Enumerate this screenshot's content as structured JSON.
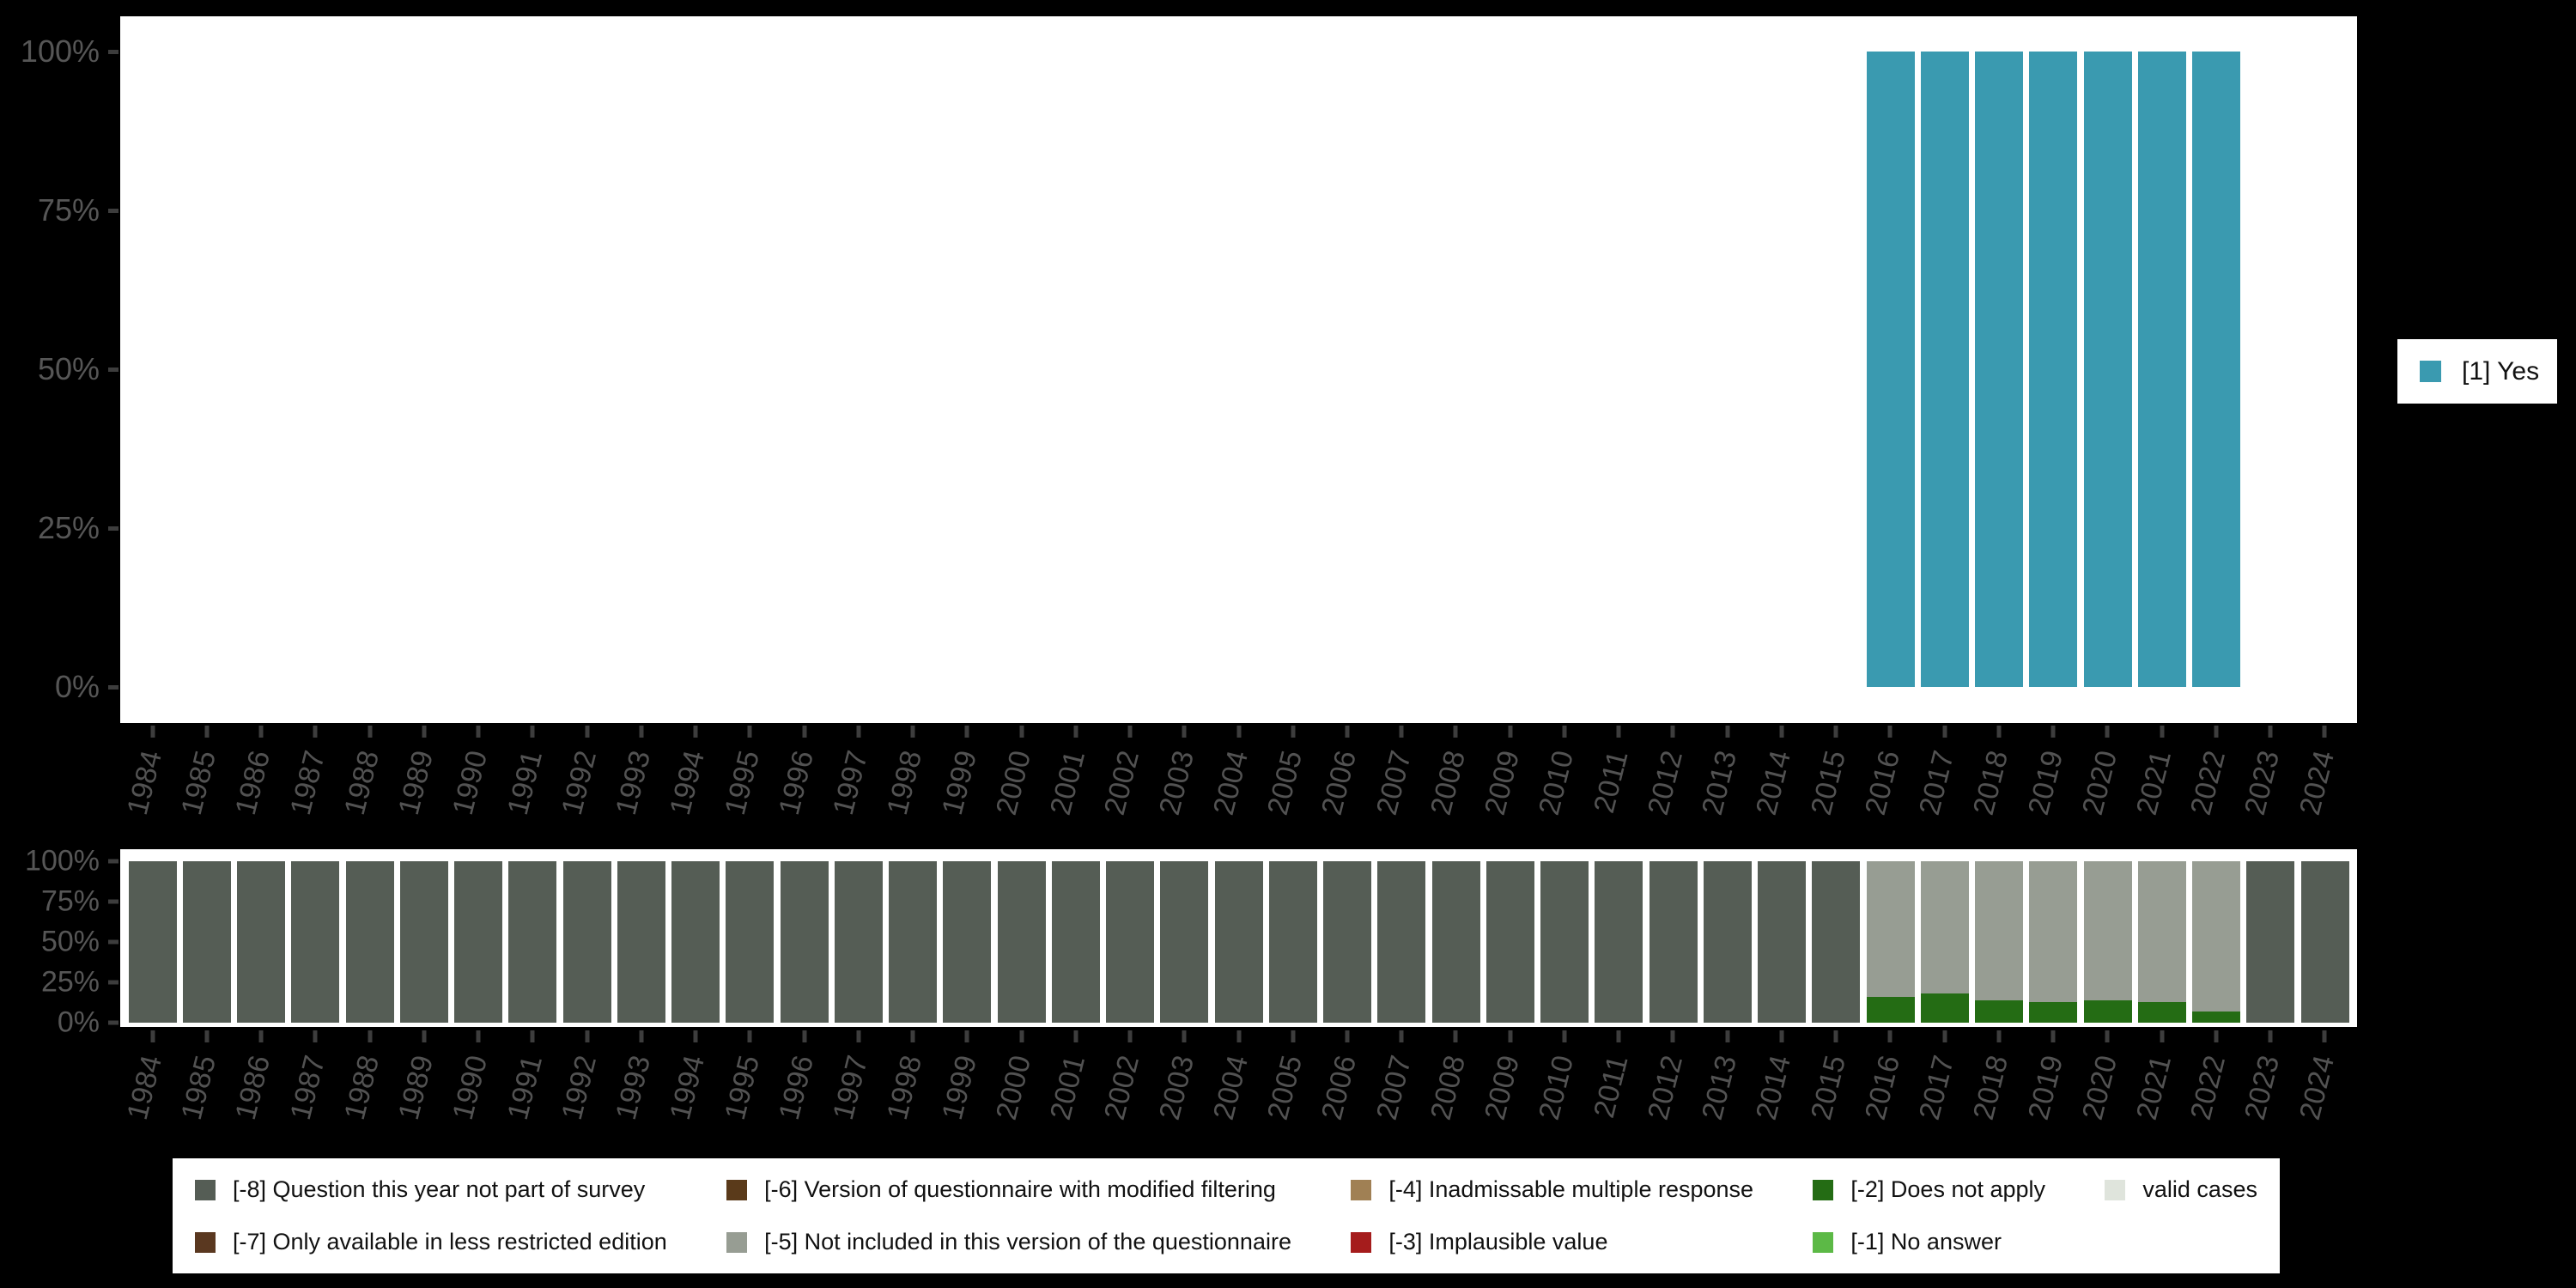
{
  "colors": {
    "background": "#000000",
    "panel": "#FFFFFF",
    "axis_label": "#565656",
    "tick_mark": "#3D3D3D",
    "legend_text": "#111111"
  },
  "chart_data": [
    {
      "type": "bar",
      "title": "",
      "xlabel": "",
      "ylabel": "",
      "categories": [
        "1984",
        "1985",
        "1986",
        "1987",
        "1988",
        "1989",
        "1990",
        "1991",
        "1992",
        "1993",
        "1994",
        "1995",
        "1996",
        "1997",
        "1998",
        "1999",
        "2000",
        "2001",
        "2002",
        "2003",
        "2004",
        "2005",
        "2006",
        "2007",
        "2008",
        "2009",
        "2010",
        "2011",
        "2012",
        "2013",
        "2014",
        "2015",
        "2016",
        "2017",
        "2018",
        "2019",
        "2020",
        "2021",
        "2022",
        "2023",
        "2024"
      ],
      "y_ticks": [
        "0%",
        "25%",
        "50%",
        "75%",
        "100%"
      ],
      "ylim": [
        0,
        100
      ],
      "unit": "percent",
      "grid": false,
      "legend_position": "right",
      "series": [
        {
          "key": "yes",
          "name": "[1] Yes",
          "color": "#3A9AB0",
          "values": [
            0,
            0,
            0,
            0,
            0,
            0,
            0,
            0,
            0,
            0,
            0,
            0,
            0,
            0,
            0,
            0,
            0,
            0,
            0,
            0,
            0,
            0,
            0,
            0,
            0,
            0,
            0,
            0,
            0,
            0,
            0,
            0,
            100,
            100,
            100,
            100,
            100,
            100,
            100,
            0,
            0
          ]
        }
      ]
    },
    {
      "type": "stacked-bar",
      "title": "",
      "xlabel": "",
      "ylabel": "",
      "categories": [
        "1984",
        "1985",
        "1986",
        "1987",
        "1988",
        "1989",
        "1990",
        "1991",
        "1992",
        "1993",
        "1994",
        "1995",
        "1996",
        "1997",
        "1998",
        "1999",
        "2000",
        "2001",
        "2002",
        "2003",
        "2004",
        "2005",
        "2006",
        "2007",
        "2008",
        "2009",
        "2010",
        "2011",
        "2012",
        "2013",
        "2014",
        "2015",
        "2016",
        "2017",
        "2018",
        "2019",
        "2020",
        "2021",
        "2022",
        "2023",
        "2024"
      ],
      "y_ticks": [
        "0%",
        "25%",
        "50%",
        "75%",
        "100%"
      ],
      "ylim": [
        0,
        100
      ],
      "unit": "percent",
      "grid": false,
      "legend_position": "bottom",
      "stack_order": "bottom-to-top",
      "series": [
        {
          "key": "does-not-apply",
          "name": "[-2] Does not apply",
          "color": "#246C14",
          "values": [
            0,
            0,
            0,
            0,
            0,
            0,
            0,
            0,
            0,
            0,
            0,
            0,
            0,
            0,
            0,
            0,
            0,
            0,
            0,
            0,
            0,
            0,
            0,
            0,
            0,
            0,
            0,
            0,
            0,
            0,
            0,
            0,
            16,
            18,
            14,
            13,
            14,
            13,
            7,
            0,
            0
          ]
        },
        {
          "key": "not-included-in-version",
          "name": "[-5] Not included in this version of the questionnaire",
          "color": "#979D93",
          "values": [
            0,
            0,
            0,
            0,
            0,
            0,
            0,
            0,
            0,
            0,
            0,
            0,
            0,
            0,
            0,
            0,
            0,
            0,
            0,
            0,
            0,
            0,
            0,
            0,
            0,
            0,
            0,
            0,
            0,
            0,
            0,
            0,
            84,
            82,
            86,
            87,
            86,
            87,
            93,
            0,
            0
          ]
        },
        {
          "key": "question-not-part-of-survey",
          "name": "[-8] Question this year not part of survey",
          "color": "#555D55",
          "values": [
            100,
            100,
            100,
            100,
            100,
            100,
            100,
            100,
            100,
            100,
            100,
            100,
            100,
            100,
            100,
            100,
            100,
            100,
            100,
            100,
            100,
            100,
            100,
            100,
            100,
            100,
            100,
            100,
            100,
            100,
            100,
            100,
            0,
            0,
            0,
            0,
            0,
            0,
            0,
            100,
            100
          ]
        }
      ],
      "legend_entries": [
        {
          "label": "[-8] Question this year not part of survey",
          "color": "#555D55"
        },
        {
          "label": "[-7] Only available in less restricted edition",
          "color": "#5A3820"
        },
        {
          "label": "[-6] Version of questionnaire with modified filtering",
          "color": "#5A3A1A"
        },
        {
          "label": "[-5] Not included in this version of the questionnaire",
          "color": "#979D93"
        },
        {
          "label": "[-4] Inadmissable multiple response",
          "color": "#A08054"
        },
        {
          "label": "[-3] Implausible value",
          "color": "#A51C1C"
        },
        {
          "label": "[-2] Does not apply",
          "color": "#246C14"
        },
        {
          "label": "[-1] No answer",
          "color": "#5CB946"
        },
        {
          "label": "valid cases",
          "color": "#DFE4DC"
        }
      ]
    }
  ]
}
